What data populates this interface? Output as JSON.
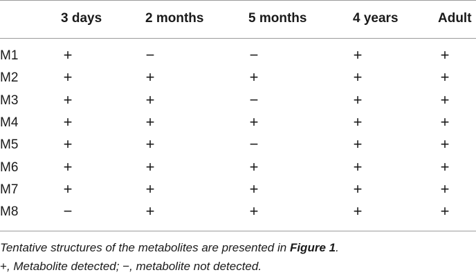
{
  "table": {
    "headers": [
      "",
      "3 days",
      "2 months",
      "5 months",
      "4 years",
      "Adult"
    ],
    "rows": [
      {
        "label": "M1",
        "values": [
          "+",
          "−",
          "−",
          "+",
          "+"
        ]
      },
      {
        "label": "M2",
        "values": [
          "+",
          "+",
          "+",
          "+",
          "+"
        ]
      },
      {
        "label": "M3",
        "values": [
          "+",
          "+",
          "−",
          "+",
          "+"
        ]
      },
      {
        "label": "M4",
        "values": [
          "+",
          "+",
          "+",
          "+",
          "+"
        ]
      },
      {
        "label": "M5",
        "values": [
          "+",
          "+",
          "−",
          "+",
          "+"
        ]
      },
      {
        "label": "M6",
        "values": [
          "+",
          "+",
          "+",
          "+",
          "+"
        ]
      },
      {
        "label": "M7",
        "values": [
          "+",
          "+",
          "+",
          "+",
          "+"
        ]
      },
      {
        "label": "M8",
        "values": [
          "−",
          "+",
          "+",
          "+",
          "+"
        ]
      }
    ]
  },
  "footnote": {
    "line1_text": "Tentative structures of the metabolites are presented in ",
    "line1_ref": "Figure 1",
    "line1_end": ".",
    "line2_plus": "+",
    "line2_a": ", Metabolite detected; ",
    "line2_minus": "−",
    "line2_b": ", metabolite not detected."
  }
}
